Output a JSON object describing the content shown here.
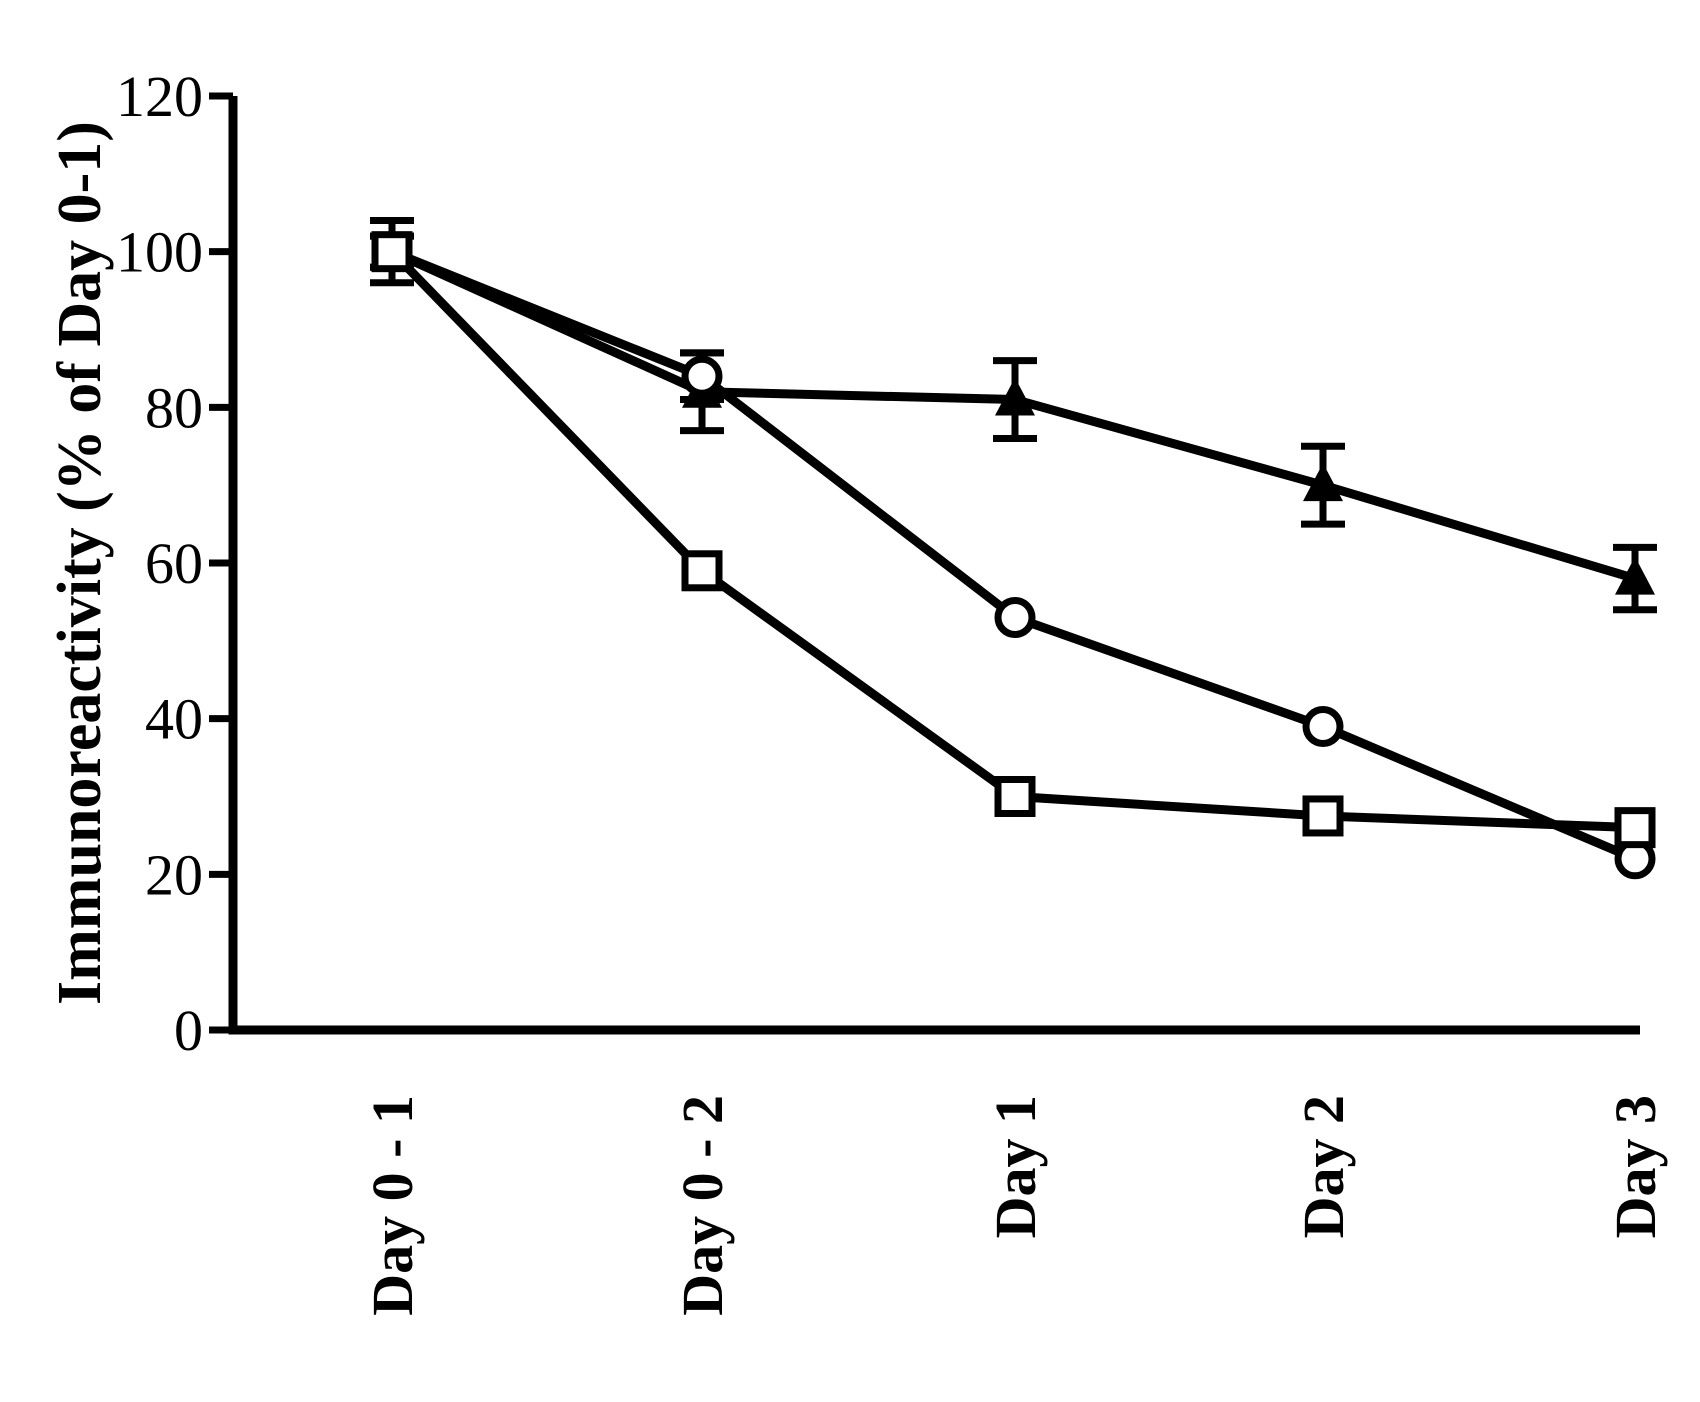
{
  "chart_data": {
    "type": "line",
    "title": "",
    "xlabel": "",
    "ylabel": "Immunoreactivity (% of Day 0-1)",
    "categories": [
      "Day 0 - 1",
      "Day 0 - 2",
      "Day 1",
      "Day 2",
      "Day 3"
    ],
    "ylim": [
      0,
      120
    ],
    "yticks": [
      0,
      20,
      40,
      60,
      80,
      100,
      120
    ],
    "grid": false,
    "series": [
      {
        "marker": "filled-triangle",
        "values": [
          100,
          82,
          81,
          70,
          58
        ],
        "errors": [
          4,
          5,
          5,
          5,
          4
        ]
      },
      {
        "marker": "open-circle",
        "values": [
          100,
          84,
          53,
          39,
          22
        ],
        "errors": [
          2,
          3,
          0,
          0,
          0
        ]
      },
      {
        "marker": "open-square",
        "values": [
          100,
          59,
          30,
          27.5,
          26
        ],
        "errors": [
          2,
          0,
          0,
          0,
          0
        ]
      }
    ],
    "colors": {
      "line": "#000000",
      "background": "#ffffff"
    }
  }
}
